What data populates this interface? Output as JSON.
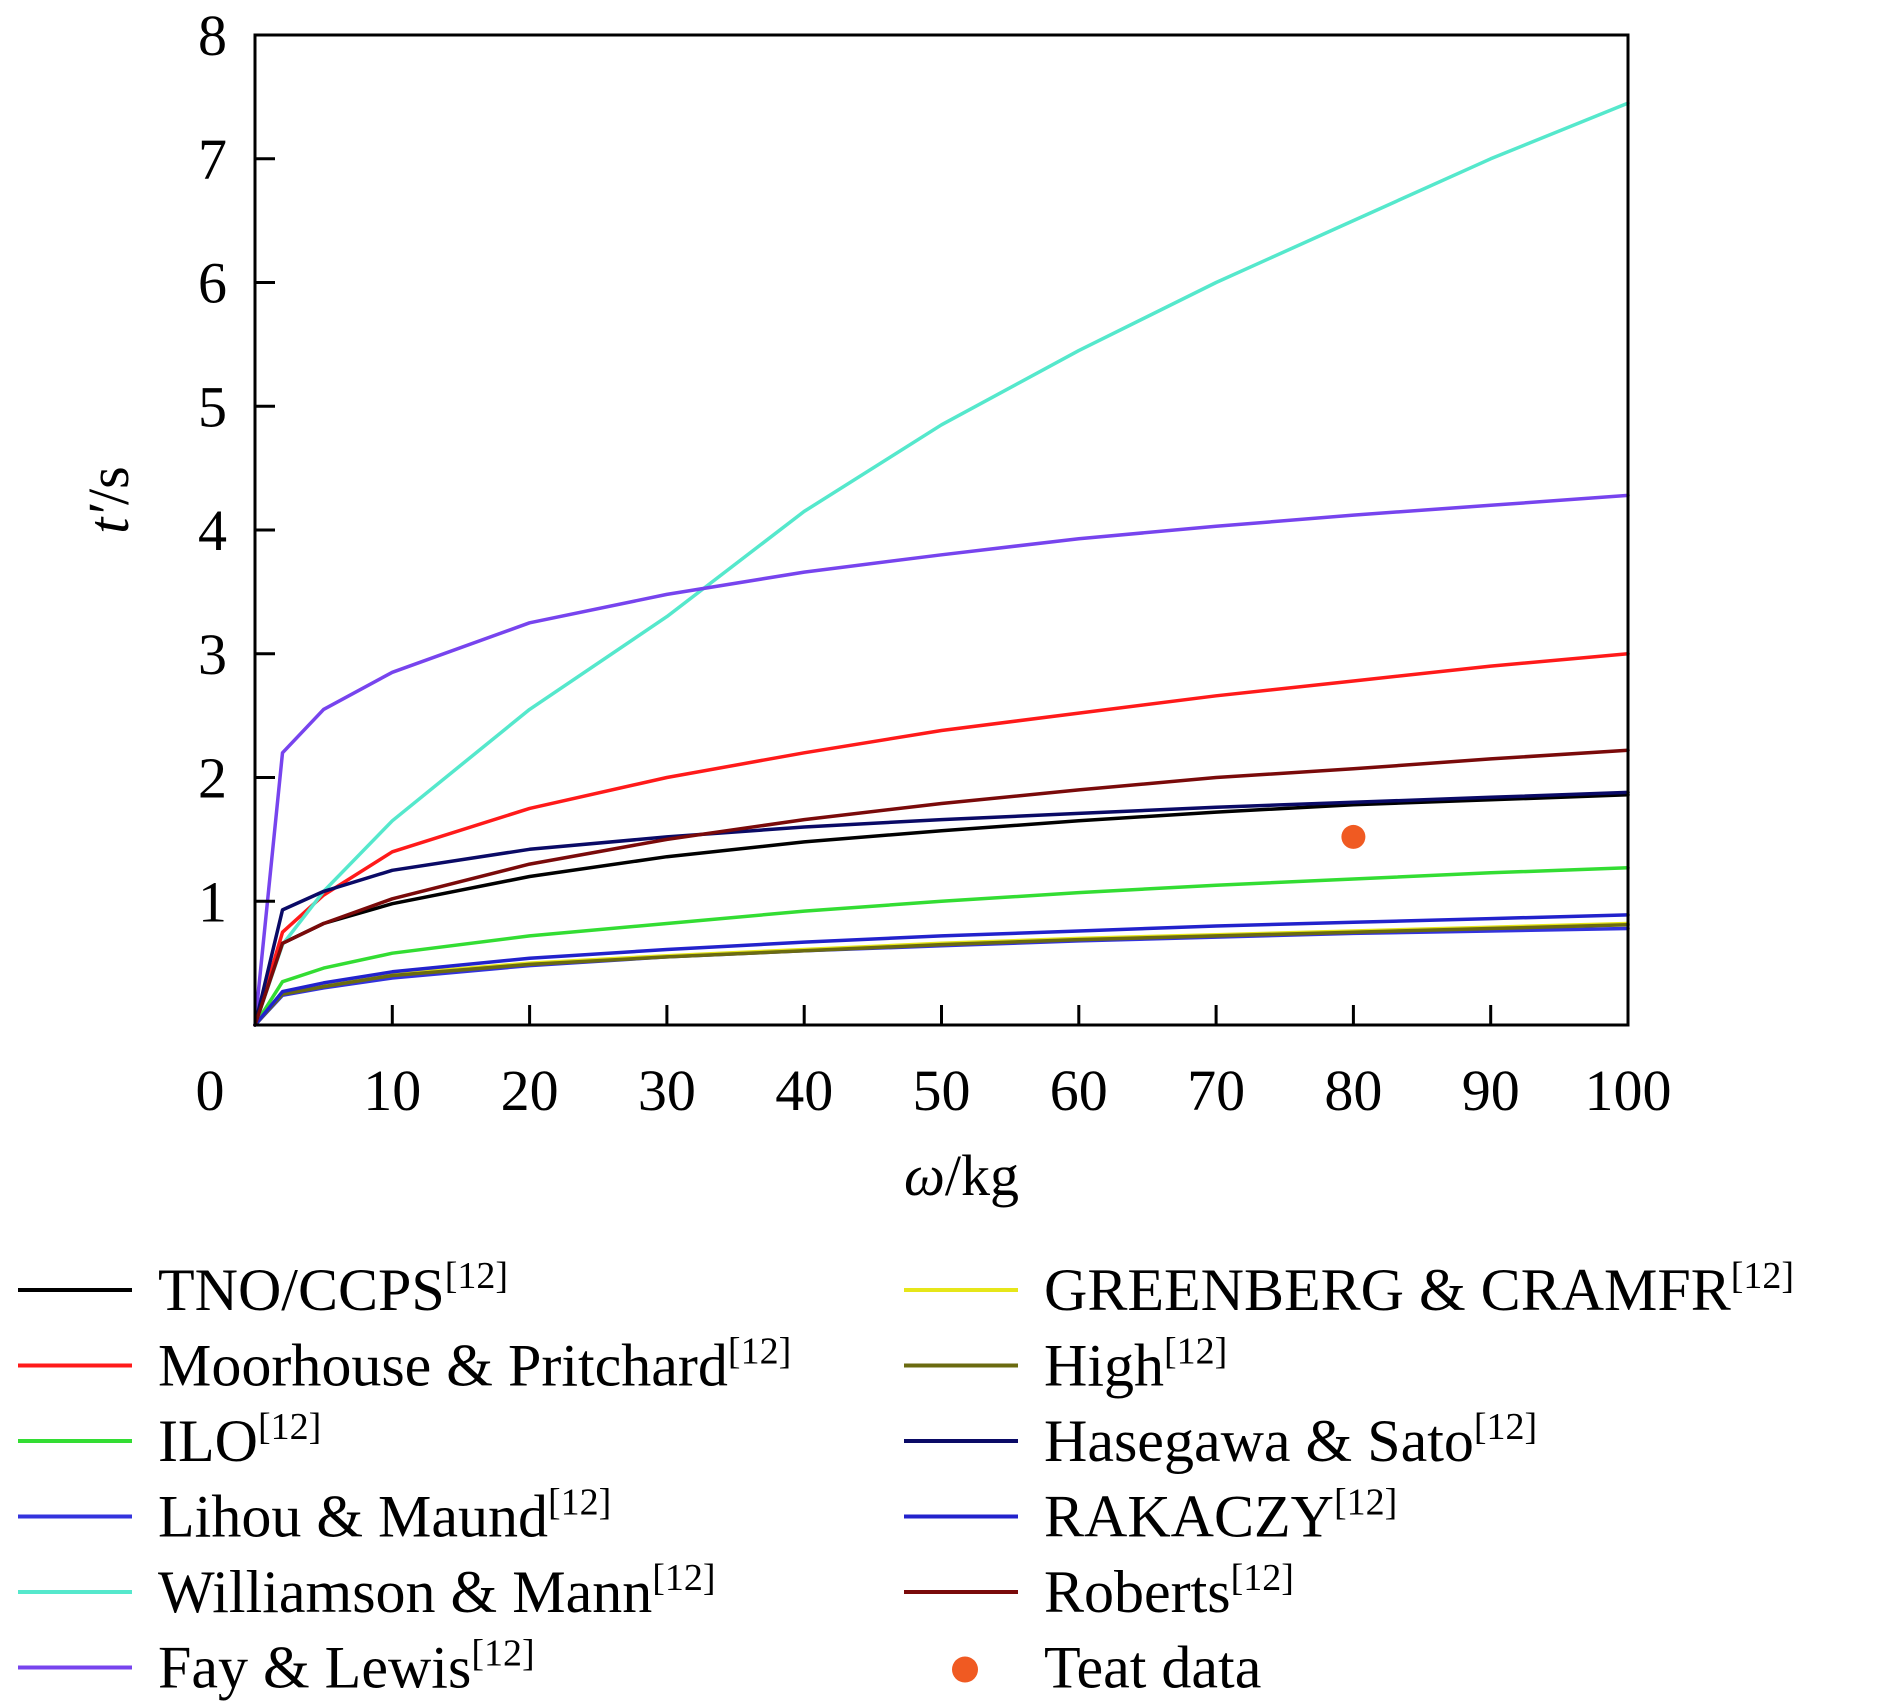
{
  "chart_data": {
    "type": "line",
    "xlabel_var": "ω",
    "xlabel_unit": "/kg",
    "ylabel_var": "t′",
    "ylabel_unit": "/s",
    "xlim": [
      0,
      100
    ],
    "ylim": [
      0,
      8
    ],
    "x_ticks": [
      "0",
      "10",
      "20",
      "30",
      "40",
      "50",
      "60",
      "70",
      "80",
      "90",
      "100"
    ],
    "y_ticks": [
      "1",
      "2",
      "3",
      "4",
      "5",
      "6",
      "7",
      "8"
    ],
    "grid": false,
    "legend_position": "bottom",
    "x": [
      0,
      2,
      5,
      10,
      20,
      30,
      40,
      50,
      60,
      70,
      80,
      90,
      100
    ],
    "series": [
      {
        "name": "TNO/CCPS",
        "ref": "[12]",
        "color": "#000000",
        "values": [
          0,
          0.66,
          0.82,
          0.98,
          1.2,
          1.36,
          1.48,
          1.57,
          1.65,
          1.72,
          1.78,
          1.82,
          1.86
        ]
      },
      {
        "name": "Moorhouse & Pritchard",
        "ref": "[12]",
        "color": "#ff1a1a",
        "values": [
          0,
          0.75,
          1.05,
          1.4,
          1.75,
          2.0,
          2.2,
          2.38,
          2.52,
          2.66,
          2.78,
          2.9,
          3.0
        ]
      },
      {
        "name": "ILO",
        "ref": "[12]",
        "color": "#33dd33",
        "values": [
          0,
          0.35,
          0.46,
          0.58,
          0.72,
          0.82,
          0.92,
          1.0,
          1.07,
          1.13,
          1.18,
          1.23,
          1.27
        ]
      },
      {
        "name": "Lihou & Maund",
        "ref": "[12]",
        "color": "#3333dd",
        "values": [
          0,
          0.24,
          0.3,
          0.38,
          0.48,
          0.55,
          0.6,
          0.64,
          0.68,
          0.71,
          0.74,
          0.76,
          0.78
        ]
      },
      {
        "name": "Williamson & Mann",
        "ref": "[12]",
        "color": "#55e8cc",
        "values": [
          0,
          0.65,
          1.08,
          1.65,
          2.55,
          3.3,
          4.15,
          4.85,
          5.45,
          6.0,
          6.5,
          7.0,
          7.45
        ]
      },
      {
        "name": "Fay & Lewis",
        "ref": "[12]",
        "color": "#7744ee",
        "values": [
          0,
          2.2,
          2.55,
          2.85,
          3.25,
          3.48,
          3.66,
          3.8,
          3.93,
          4.03,
          4.12,
          4.2,
          4.28
        ]
      },
      {
        "name": "GREENBERG & CRAMFR",
        "ref": "[12]",
        "color": "#e6e619",
        "values": [
          0,
          0.26,
          0.32,
          0.41,
          0.5,
          0.56,
          0.61,
          0.66,
          0.7,
          0.73,
          0.76,
          0.79,
          0.82
        ]
      },
      {
        "name": "High",
        "ref": "[12]",
        "color": "#6b6b10",
        "values": [
          0,
          0.25,
          0.31,
          0.4,
          0.49,
          0.55,
          0.6,
          0.65,
          0.69,
          0.72,
          0.75,
          0.78,
          0.81
        ]
      },
      {
        "name": "Hasegawa & Sato",
        "ref": "[12]",
        "color": "#0a0a66",
        "values": [
          0,
          0.93,
          1.08,
          1.25,
          1.42,
          1.52,
          1.6,
          1.66,
          1.71,
          1.76,
          1.8,
          1.84,
          1.88
        ]
      },
      {
        "name": "RAKACZY",
        "ref": "[12]",
        "color": "#2222cc",
        "values": [
          0,
          0.27,
          0.34,
          0.43,
          0.54,
          0.61,
          0.67,
          0.72,
          0.76,
          0.8,
          0.83,
          0.86,
          0.89
        ]
      },
      {
        "name": "Roberts",
        "ref": "[12]",
        "color": "#7a0a0a",
        "values": [
          0,
          0.66,
          0.82,
          1.02,
          1.3,
          1.5,
          1.66,
          1.79,
          1.9,
          2.0,
          2.07,
          2.15,
          2.22
        ]
      }
    ],
    "points": [
      {
        "name": "Teat data",
        "color": "#f05a22",
        "x": 80,
        "y": 1.52
      }
    ]
  }
}
